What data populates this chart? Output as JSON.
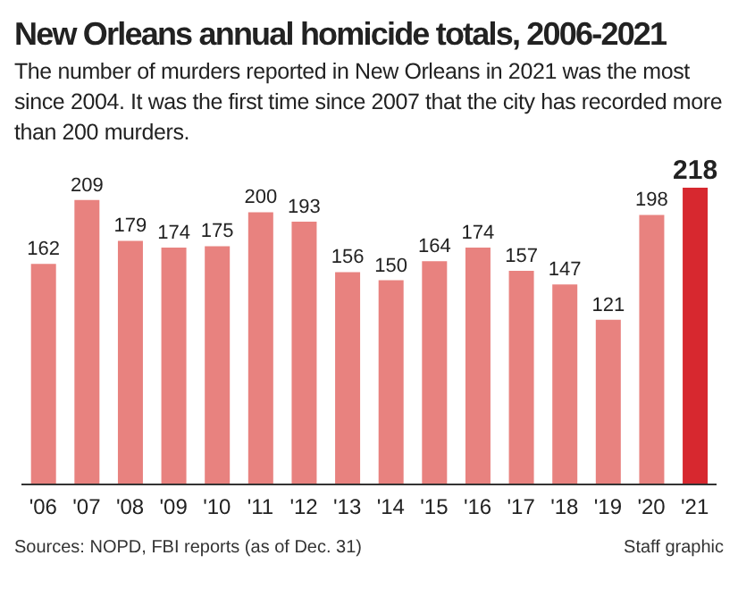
{
  "chart_data": {
    "type": "bar",
    "title": "New Orleans annual homicide totals, 2006-2021",
    "subtitle": "The number of murders reported in New Orleans in 2021 was the most since 2004. It was the first time since 2007 that the city has recorded more than 200 murders.",
    "categories": [
      "'06",
      "'07",
      "'08",
      "'09",
      "'10",
      "'11",
      "'12",
      "'13",
      "'14",
      "'15",
      "'16",
      "'17",
      "'18",
      "'19",
      "'20",
      "'21"
    ],
    "values": [
      162,
      209,
      179,
      174,
      175,
      200,
      193,
      156,
      150,
      164,
      174,
      157,
      147,
      121,
      198,
      218
    ],
    "colors": [
      "#e8827f",
      "#e8827f",
      "#e8827f",
      "#e8827f",
      "#e8827f",
      "#e8827f",
      "#e8827f",
      "#e8827f",
      "#e8827f",
      "#e8827f",
      "#e8827f",
      "#e8827f",
      "#e8827f",
      "#e8827f",
      "#e8827f",
      "#d7282f"
    ],
    "data_labels": true,
    "annotations": [
      "Sources: NOPD, FBI reports (as of Dec. 31)",
      "Staff graphic"
    ]
  }
}
